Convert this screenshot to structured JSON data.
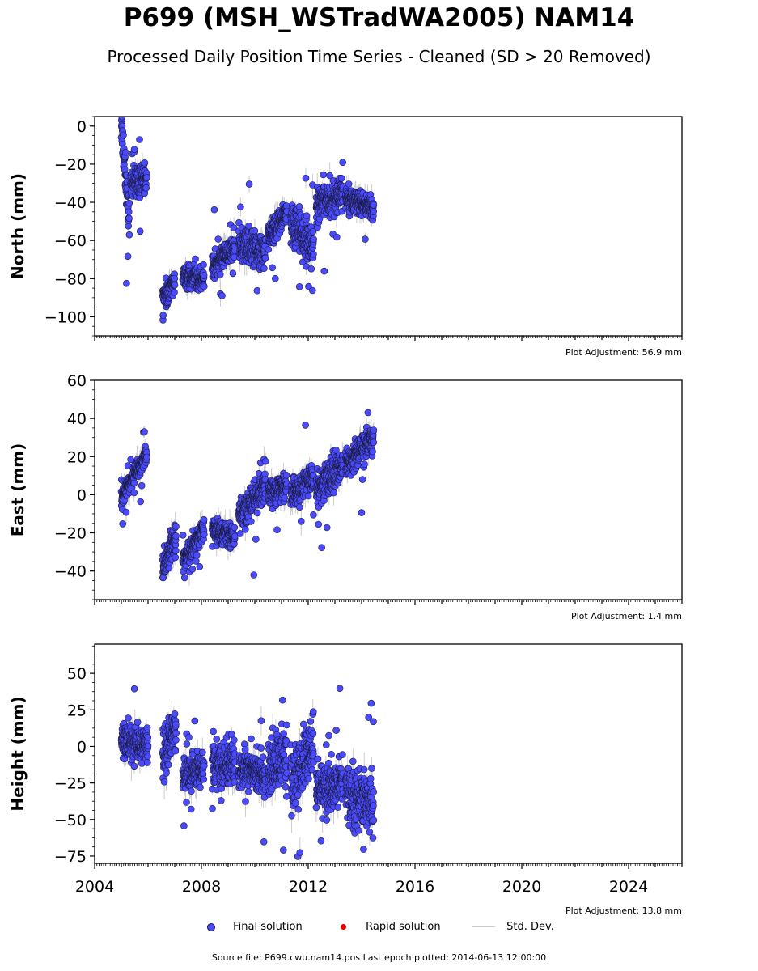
{
  "title": "P699 (MSH_WSTradWA2005) NAM14",
  "subtitle": "Processed Daily Position Time Series - Cleaned (SD > 20 Removed)",
  "colors": {
    "final": "#4a4aff",
    "rapid": "#e00000",
    "std": "#cccccc",
    "edge": "#1a1a3a"
  },
  "legend": {
    "final": "Final solution",
    "rapid": "Rapid solution",
    "std": "Std. Dev."
  },
  "footer": "Source file: P699.cwu.nam14.pos  Last epoch plotted: 2014-06-13 12:00:00",
  "chart_data": [
    {
      "type": "scatter",
      "ylabel": "North (mm)",
      "adjustment": "Plot Adjustment: 56.9 mm",
      "xlim": [
        2004,
        2026
      ],
      "ylim": [
        -110,
        5
      ],
      "yticks": [
        0,
        -20,
        -40,
        -60,
        -80,
        -100
      ],
      "yticklabels": [
        "0",
        "−20",
        "−40",
        "−60",
        "−80",
        "−100"
      ],
      "segments": [
        {
          "t0": 2005.0,
          "t1": 2005.3,
          "v0": 0,
          "v1": -52,
          "sd": 10
        },
        {
          "t0": 2005.35,
          "t1": 2005.95,
          "v0": -30,
          "v1": -27,
          "sd": 6
        },
        {
          "t0": 2006.55,
          "t1": 2007.0,
          "v0": -90,
          "v1": -82,
          "sd": 5
        },
        {
          "t0": 2007.3,
          "t1": 2008.1,
          "v0": -79,
          "v1": -80,
          "sd": 5
        },
        {
          "t0": 2008.4,
          "t1": 2009.25,
          "v0": -73,
          "v1": -64,
          "sd": 5
        },
        {
          "t0": 2009.4,
          "t1": 2010.4,
          "v0": -61,
          "v1": -67,
          "sd": 8
        },
        {
          "t0": 2010.5,
          "t1": 2011.2,
          "v0": -58,
          "v1": -45,
          "sd": 6
        },
        {
          "t0": 2011.35,
          "t1": 2012.2,
          "v0": -50,
          "v1": -65,
          "sd": 10
        },
        {
          "t0": 2012.3,
          "t1": 2013.3,
          "v0": -42,
          "v1": -35,
          "sd": 7
        },
        {
          "t0": 2013.4,
          "t1": 2014.45,
          "v0": -38,
          "v1": -43,
          "sd": 5
        }
      ]
    },
    {
      "type": "scatter",
      "ylabel": "East (mm)",
      "adjustment": "Plot Adjustment: 1.4 mm",
      "xlim": [
        2004,
        2026
      ],
      "ylim": [
        -55,
        60
      ],
      "yticks": [
        60,
        40,
        20,
        0,
        -20,
        -40
      ],
      "yticklabels": [
        "60",
        "40",
        "20",
        "0",
        "−20",
        "−40"
      ],
      "segments": [
        {
          "t0": 2005.0,
          "t1": 2005.95,
          "v0": -1,
          "v1": 22,
          "sd": 4
        },
        {
          "t0": 2006.55,
          "t1": 2007.05,
          "v0": -38,
          "v1": -22,
          "sd": 7
        },
        {
          "t0": 2007.3,
          "t1": 2008.1,
          "v0": -35,
          "v1": -18,
          "sd": 5
        },
        {
          "t0": 2008.4,
          "t1": 2009.25,
          "v0": -18,
          "v1": -22,
          "sd": 5
        },
        {
          "t0": 2009.4,
          "t1": 2010.4,
          "v0": -12,
          "v1": 5,
          "sd": 7
        },
        {
          "t0": 2010.5,
          "t1": 2011.2,
          "v0": 0,
          "v1": 5,
          "sd": 6
        },
        {
          "t0": 2011.35,
          "t1": 2012.2,
          "v0": 0,
          "v1": 10,
          "sd": 6
        },
        {
          "t0": 2012.3,
          "t1": 2013.3,
          "v0": 3,
          "v1": 15,
          "sd": 8
        },
        {
          "t0": 2013.4,
          "t1": 2014.45,
          "v0": 16,
          "v1": 30,
          "sd": 6
        }
      ]
    },
    {
      "type": "scatter",
      "ylabel": "Height (mm)",
      "adjustment": "Plot Adjustment: 13.8 mm",
      "xlim": [
        2004,
        2026
      ],
      "ylim": [
        -80,
        70
      ],
      "yticks": [
        50,
        25,
        0,
        -25,
        -50,
        -75
      ],
      "yticklabels": [
        "50",
        "25",
        "0",
        "−25",
        "−50",
        "−75"
      ],
      "xticks": [
        2004,
        2008,
        2012,
        2016,
        2020,
        2024
      ],
      "xticklabels": [
        "2004",
        "2008",
        "2012",
        "2016",
        "2020",
        "2024"
      ],
      "segments": [
        {
          "t0": 2005.0,
          "t1": 2006.0,
          "v0": 5,
          "v1": 0,
          "sd": 10
        },
        {
          "t0": 2006.55,
          "t1": 2007.05,
          "v0": -5,
          "v1": 15,
          "sd": 14
        },
        {
          "t0": 2007.3,
          "t1": 2008.1,
          "v0": -20,
          "v1": -15,
          "sd": 10
        },
        {
          "t0": 2008.4,
          "t1": 2009.25,
          "v0": -15,
          "v1": -10,
          "sd": 12
        },
        {
          "t0": 2009.4,
          "t1": 2010.4,
          "v0": -15,
          "v1": -20,
          "sd": 12
        },
        {
          "t0": 2010.5,
          "t1": 2011.2,
          "v0": -15,
          "v1": -5,
          "sd": 16
        },
        {
          "t0": 2011.35,
          "t1": 2012.2,
          "v0": -25,
          "v1": 0,
          "sd": 18
        },
        {
          "t0": 2012.3,
          "t1": 2013.3,
          "v0": -30,
          "v1": -25,
          "sd": 14
        },
        {
          "t0": 2013.4,
          "t1": 2014.45,
          "v0": -30,
          "v1": -40,
          "sd": 16
        }
      ]
    }
  ]
}
